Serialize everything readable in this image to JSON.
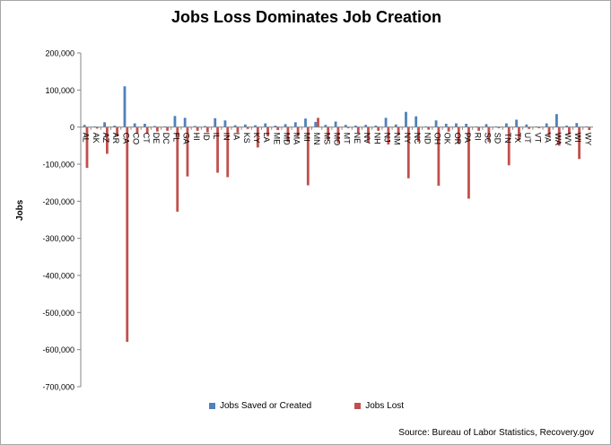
{
  "chart_data": {
    "type": "bar",
    "title": "Jobs Loss Dominates Job Creation",
    "ylabel": "Jobs",
    "xlabel": "",
    "ylim": [
      -700000,
      200000
    ],
    "y_ticks": [
      "200,000",
      "100,000",
      "0",
      "-100,000",
      "-200,000",
      "-300,000",
      "-400,000",
      "-500,000",
      "-600,000",
      "-700,000"
    ],
    "y_tick_values": [
      200000,
      100000,
      0,
      -100000,
      -200000,
      -300000,
      -400000,
      -500000,
      -600000,
      -700000
    ],
    "grid": false,
    "legend_position": "bottom",
    "categories": [
      "AL",
      "AK",
      "AZ",
      "AR",
      "CA",
      "CO",
      "CT",
      "DE",
      "DC",
      "FL",
      "GA",
      "HI",
      "ID",
      "IL",
      "IN",
      "IA",
      "KS",
      "KY",
      "LA",
      "ME",
      "MD",
      "MA",
      "MI",
      "MN",
      "MS",
      "MO",
      "MT",
      "NE",
      "NV",
      "NH",
      "NJ",
      "NM",
      "NY",
      "NC",
      "ND",
      "OH",
      "OK",
      "OR",
      "PA",
      "RI",
      "SC",
      "SD",
      "TN",
      "TX",
      "UT",
      "VT",
      "VA",
      "WA",
      "WV",
      "WI",
      "WY"
    ],
    "series": [
      {
        "name": "Jobs Saved or Created",
        "color": "#4f81bd",
        "values": [
          6000,
          2000,
          13000,
          4000,
          110000,
          10000,
          9000,
          3000,
          2000,
          30000,
          25000,
          3000,
          3000,
          24000,
          18000,
          5000,
          7000,
          5000,
          10000,
          4000,
          8000,
          13000,
          23000,
          14000,
          6000,
          15000,
          6000,
          4000,
          6000,
          4000,
          25000,
          7000,
          41000,
          29000,
          2000,
          18000,
          9000,
          10000,
          9000,
          2000,
          8000,
          2000,
          10000,
          20000,
          7000,
          2000,
          10000,
          35000,
          4000,
          11000,
          2000
        ]
      },
      {
        "name": "Jobs Lost",
        "color": "#c0504d",
        "values": [
          -110000,
          -4000,
          -72000,
          -25000,
          -579000,
          -17000,
          -17000,
          -12000,
          -10000,
          -228000,
          -133000,
          -10000,
          -14000,
          -123000,
          -135000,
          -15000,
          -5000,
          -55000,
          -25000,
          -8000,
          -40000,
          -25000,
          -157000,
          25000,
          -35000,
          -43000,
          -3000,
          -16000,
          -42000,
          -10000,
          -47000,
          -22000,
          -138000,
          -40000,
          -7000,
          -158000,
          -12000,
          -45000,
          -193000,
          -10000,
          -40000,
          -3000,
          -103000,
          -35000,
          -5000,
          -3000,
          -25000,
          -50000,
          -20000,
          -86000,
          -8000
        ]
      }
    ]
  },
  "source_note": "Source: Bureau of Labor Statistics, Recovery.gov"
}
